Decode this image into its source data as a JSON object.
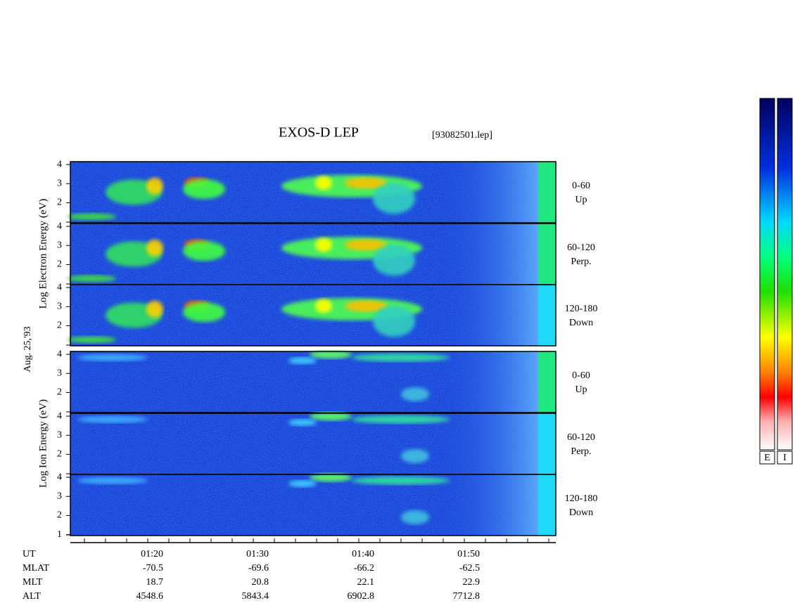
{
  "title": "EXOS-D LEP",
  "file": "[93082501.lep]",
  "date_label": "Aug. 25,'93",
  "groups": [
    {
      "label": "Log  Electron  Energy (eV)"
    },
    {
      "label": "Log  Ion  Energy (eV)"
    }
  ],
  "ylim": [
    0.95,
    4.15
  ],
  "panels": [
    {
      "yticks": [
        2,
        3,
        4
      ],
      "angle": "0-60",
      "direction": "Up"
    },
    {
      "yticks": [
        2,
        3,
        4
      ],
      "angle": "60-120",
      "direction": "Perp."
    },
    {
      "yticks": [
        2,
        3,
        4
      ],
      "angle": "120-180",
      "direction": "Down"
    },
    {
      "yticks": [
        2,
        3,
        4
      ],
      "angle": "0-60",
      "direction": "Up"
    },
    {
      "yticks": [
        2,
        3,
        4
      ],
      "angle": "60-120",
      "direction": "Perp."
    },
    {
      "yticks": [
        1,
        2,
        3,
        4
      ],
      "angle": "120-180",
      "direction": "Down"
    }
  ],
  "ephemeris": {
    "rows": [
      [
        "UT",
        "01:20",
        "01:30",
        "01:40",
        "01:50"
      ],
      [
        "MLAT",
        "-70.5",
        "-69.6",
        "-66.2",
        "-62.5"
      ],
      [
        "MLT",
        "18.7",
        "20.8",
        "22.1",
        "22.9"
      ],
      [
        "ALT",
        "4548.6",
        "5843.4",
        "6902.8",
        "7712.8"
      ]
    ]
  },
  "colorbars": [
    "E",
    "I"
  ]
}
